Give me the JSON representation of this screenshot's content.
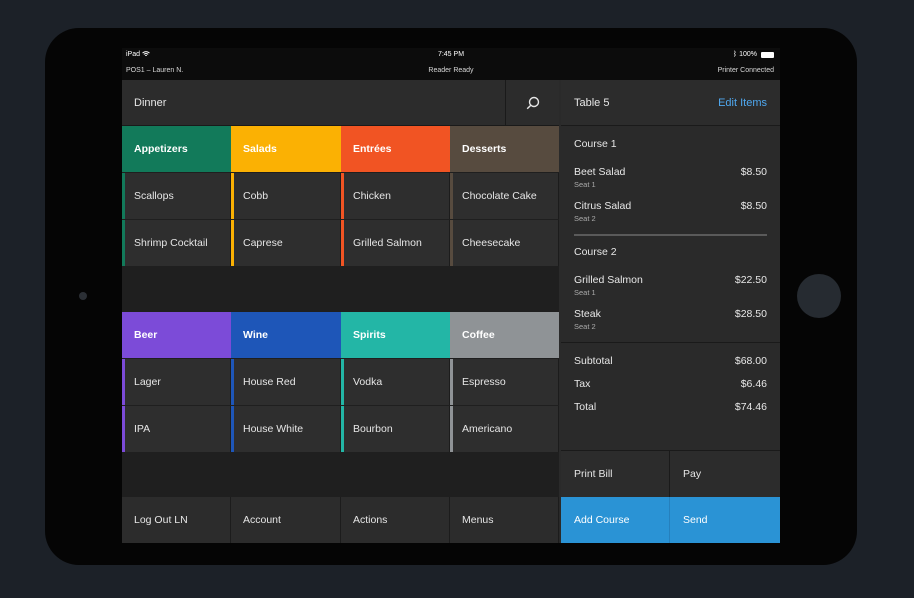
{
  "status": {
    "device": "iPad",
    "time": "7:45 PM",
    "battery": "100%"
  },
  "info": {
    "user": "POS1 – Lauren N.",
    "reader": "Reader Ready",
    "printer": "Printer Connected"
  },
  "menu": {
    "title": "Dinner"
  },
  "food": {
    "categories": [
      "Appetizers",
      "Salads",
      "Entrées",
      "Desserts"
    ],
    "colors": [
      "#127a5a",
      "#fbb103",
      "#f15423",
      "#574b3f"
    ],
    "rows": [
      [
        "Scallops",
        "Cobb",
        "Chicken",
        "Chocolate Cake"
      ],
      [
        "Shrimp Cocktail",
        "Caprese",
        "Grilled Salmon",
        "Cheesecake"
      ]
    ]
  },
  "drinks": {
    "categories": [
      "Beer",
      "Wine",
      "Spirits",
      "Coffee"
    ],
    "colors": [
      "#7c4bd8",
      "#1e56b8",
      "#23b6a6",
      "#8f9396"
    ],
    "rows": [
      [
        "Lager",
        "House Red",
        "Vodka",
        "Espresso"
      ],
      [
        "IPA",
        "House White",
        "Bourbon",
        "Americano"
      ]
    ]
  },
  "bottom": [
    "Log Out LN",
    "Account",
    "Actions",
    "Menus"
  ],
  "order": {
    "table": "Table 5",
    "edit": "Edit Items",
    "course1": {
      "title": "Course 1",
      "items": [
        {
          "name": "Beet Salad",
          "seat": "Seat 1",
          "price": "$8.50"
        },
        {
          "name": "Citrus Salad",
          "seat": "Seat 2",
          "price": "$8.50"
        }
      ]
    },
    "course2": {
      "title": "Course 2",
      "items": [
        {
          "name": "Grilled Salmon",
          "seat": "Seat 1",
          "price": "$22.50"
        },
        {
          "name": "Steak",
          "seat": "Seat 2",
          "price": "$28.50"
        }
      ]
    },
    "subtotal_label": "Subtotal",
    "subtotal": "$68.00",
    "tax_label": "Tax",
    "tax": "$6.46",
    "total_label": "Total",
    "total": "$74.46"
  },
  "actions": {
    "print": "Print Bill",
    "pay": "Pay",
    "add_course": "Add Course",
    "send": "Send"
  },
  "accent": "#2a93d5"
}
